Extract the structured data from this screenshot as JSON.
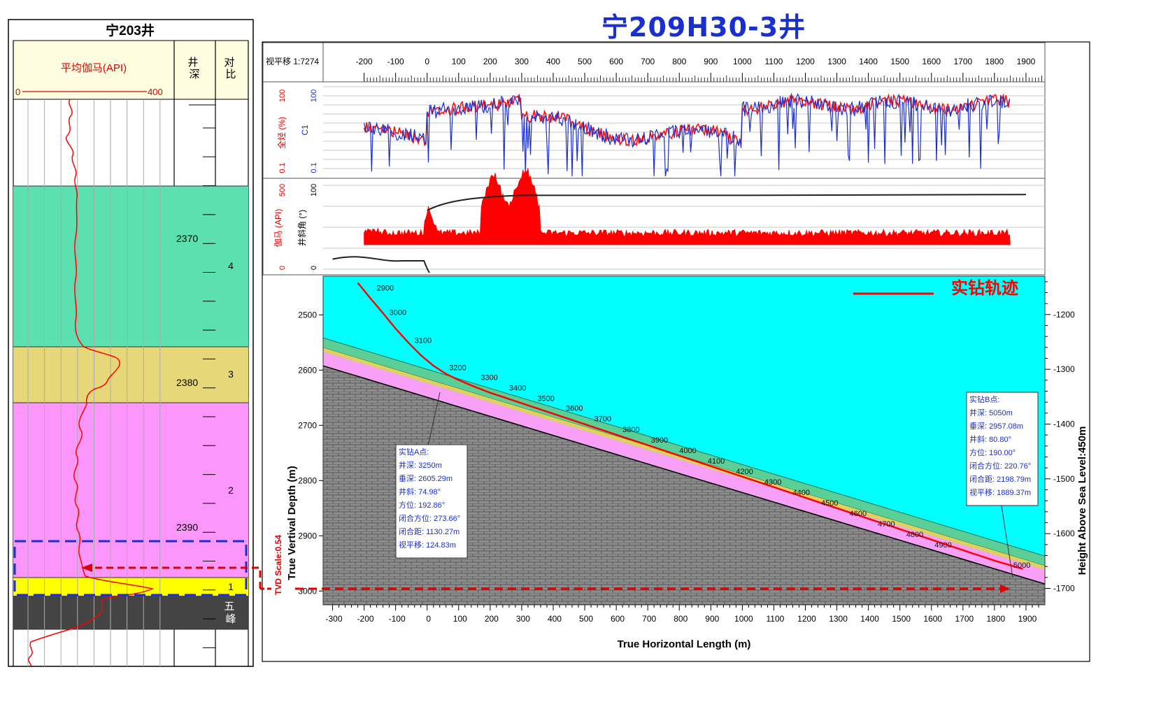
{
  "main_title": "宁209H30-3井",
  "left_panel": {
    "title": "宁203井",
    "curve_label": "平均伽马(API)",
    "scale_min": "0",
    "scale_max": "400",
    "depth_header": "井\n深",
    "contrast_header": "对\n比",
    "depth_labels": [
      "2370",
      "2380",
      "2390"
    ],
    "layers": [
      "4",
      "3",
      "2",
      "1",
      "五\n峰"
    ],
    "colors": {
      "layer4": "#5de0b0",
      "layer3": "#e6d878",
      "layer2": "#fc96fc",
      "layer1": "#ffff00",
      "wufeng": "#444444",
      "curve": "#ff0000"
    }
  },
  "right_panel": {
    "offset_label": "视平移 1:7274",
    "track1_labels": {
      "left": "全烃 (%)",
      "right": "C1",
      "top": "100",
      "bottom": "0.1"
    },
    "track2_labels": {
      "left": "伽马 (API)",
      "right": "井斜角 (°)",
      "left_top": "500",
      "right_top": "100",
      "bottom": "0"
    },
    "legend_label": "实钻轨迹",
    "tvd_scale": "TVD Scale:0.54",
    "xlabel": "True Horizontal Length (m)",
    "ylabel": "True Vertival Depth (m)",
    "y2label": "Height Above Sea Level:450m",
    "point_a": {
      "title": "实钻A点:",
      "lines": [
        "井深: 3250m",
        "垂深: 2605.29m",
        "井斜: 74.98°",
        "方位: 192.86°",
        "闭合方位: 273.66°",
        "闭合距: 1130.27m",
        "视平移: 124.83m"
      ]
    },
    "point_b": {
      "title": "实钻B点:",
      "lines": [
        "井深: 5050m",
        "垂深: 2957.08m",
        "井斜: 80.80°",
        "方位: 190.00°",
        "闭合方位: 220.76°",
        "闭合距: 2198.79m",
        "视平移: 1889.37m"
      ]
    }
  },
  "chart_data": {
    "type": "line",
    "title": "宁209H30-3井",
    "xlabel": "True Horizontal Length (m)",
    "ylabel": "True Vertival Depth (m)",
    "y2label": "Height Above Sea Level:450m",
    "xlim": [
      -300,
      1950
    ],
    "ylim": [
      2450,
      3020
    ],
    "y2lim": [
      -1150,
      -1730
    ],
    "x_ticks": [
      -300,
      -200,
      -100,
      0,
      100,
      200,
      300,
      400,
      500,
      600,
      700,
      800,
      900,
      1000,
      1100,
      1200,
      1300,
      1400,
      1500,
      1600,
      1700,
      1800,
      1900
    ],
    "top_ticks": [
      -200,
      -100,
      0,
      100,
      200,
      300,
      400,
      500,
      600,
      700,
      800,
      900,
      1000,
      1100,
      1200,
      1300,
      1400,
      1500,
      1600,
      1700,
      1800,
      1900
    ],
    "y_ticks": [
      2500,
      2600,
      2700,
      2800,
      2900,
      3000
    ],
    "y2_ticks": [
      -1200,
      -1300,
      -1400,
      -1500,
      -1600,
      -1700
    ],
    "series": [
      {
        "name": "实钻轨迹",
        "x": [
          -220,
          -180,
          -140,
          -100,
          -60,
          -20,
          20,
          60,
          100,
          150,
          200,
          300,
          400,
          500,
          600,
          700,
          800,
          900,
          1000,
          1100,
          1200,
          1300,
          1400,
          1500,
          1600,
          1700,
          1800,
          1890
        ],
        "y": [
          2442,
          2470,
          2497,
          2525,
          2550,
          2573,
          2592,
          2607,
          2618,
          2630,
          2641,
          2660,
          2679,
          2698,
          2717,
          2736,
          2755,
          2774,
          2793,
          2812,
          2831,
          2850,
          2869,
          2888,
          2907,
          2926,
          2945,
          2960
        ]
      }
    ],
    "md_labels": [
      {
        "text": "2900",
        "x": -160,
        "y": 2456
      },
      {
        "text": "3000",
        "x": -120,
        "y": 2500
      },
      {
        "text": "3100",
        "x": -40,
        "y": 2551
      },
      {
        "text": "3200",
        "x": 70,
        "y": 2600
      },
      {
        "text": "3300",
        "x": 170,
        "y": 2618
      },
      {
        "text": "3400",
        "x": 260,
        "y": 2637
      },
      {
        "text": "3500",
        "x": 350,
        "y": 2656
      },
      {
        "text": "3600",
        "x": 440,
        "y": 2674
      },
      {
        "text": "3700",
        "x": 530,
        "y": 2693
      },
      {
        "text": "3800",
        "x": 620,
        "y": 2712
      },
      {
        "text": "3900",
        "x": 710,
        "y": 2731
      },
      {
        "text": "4000",
        "x": 800,
        "y": 2750
      },
      {
        "text": "4100",
        "x": 890,
        "y": 2769
      },
      {
        "text": "4200",
        "x": 980,
        "y": 2788
      },
      {
        "text": "4300",
        "x": 1070,
        "y": 2807
      },
      {
        "text": "4400",
        "x": 1160,
        "y": 2826
      },
      {
        "text": "4500",
        "x": 1250,
        "y": 2845
      },
      {
        "text": "4600",
        "x": 1340,
        "y": 2864
      },
      {
        "text": "4700",
        "x": 1430,
        "y": 2883
      },
      {
        "text": "4800",
        "x": 1520,
        "y": 2902
      },
      {
        "text": "4900",
        "x": 1610,
        "y": 2921
      },
      {
        "text": "5000",
        "x": 1860,
        "y": 2958
      }
    ],
    "deviation_profile": {
      "x": [
        -300,
        -200,
        -100,
        -50,
        0,
        100,
        200,
        400,
        1000,
        1900
      ],
      "y": [
        12,
        15,
        10,
        -5,
        -60,
        82,
        88,
        90,
        90,
        92
      ]
    }
  }
}
